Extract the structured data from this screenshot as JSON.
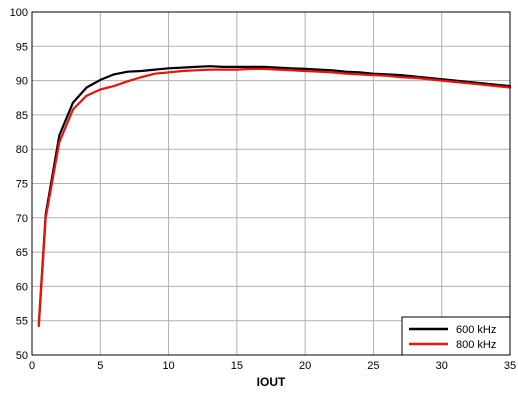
{
  "chart_data": {
    "type": "line",
    "title": "",
    "xlabel": "IOUT",
    "ylabel": "",
    "xlim": [
      0,
      35
    ],
    "ylim": [
      50,
      100
    ],
    "x_ticks": [
      0,
      5,
      10,
      15,
      20,
      25,
      30,
      35
    ],
    "y_ticks": [
      50,
      55,
      60,
      65,
      70,
      75,
      80,
      85,
      90,
      95,
      100
    ],
    "grid": true,
    "legend_position": "bottom-right",
    "series": [
      {
        "name": "600 kHz",
        "color": "#000000",
        "x": [
          0.5,
          1,
          2,
          3,
          4,
          5,
          6,
          7,
          8,
          9,
          10,
          11,
          12,
          13,
          14,
          15,
          16,
          17,
          18,
          19,
          20,
          21,
          22,
          23,
          24,
          25,
          26,
          27,
          28,
          29,
          30,
          31,
          32,
          33,
          34,
          35
        ],
        "y": [
          54.5,
          70.5,
          82,
          86.8,
          89,
          90.1,
          90.9,
          91.3,
          91.4,
          91.6,
          91.8,
          91.9,
          92.0,
          92.1,
          92.0,
          92.0,
          92.0,
          92.0,
          91.9,
          91.8,
          91.7,
          91.6,
          91.5,
          91.3,
          91.2,
          91.0,
          90.9,
          90.8,
          90.6,
          90.4,
          90.2,
          90.0,
          89.8,
          89.6,
          89.4,
          89.2
        ]
      },
      {
        "name": "800 kHz",
        "color": "#e8140c",
        "x": [
          0.5,
          1,
          2,
          3,
          4,
          5,
          6,
          7,
          8,
          9,
          10,
          11,
          12,
          13,
          14,
          15,
          16,
          17,
          18,
          19,
          20,
          21,
          22,
          23,
          24,
          25,
          26,
          27,
          28,
          29,
          30,
          31,
          32,
          33,
          34,
          35
        ],
        "y": [
          54.2,
          70,
          81,
          85.8,
          87.8,
          88.7,
          89.2,
          89.9,
          90.5,
          91.0,
          91.2,
          91.4,
          91.5,
          91.6,
          91.6,
          91.6,
          91.7,
          91.7,
          91.6,
          91.5,
          91.4,
          91.3,
          91.2,
          91.0,
          90.9,
          90.8,
          90.7,
          90.5,
          90.4,
          90.2,
          90.0,
          89.8,
          89.6,
          89.4,
          89.2,
          89.0
        ]
      }
    ]
  }
}
